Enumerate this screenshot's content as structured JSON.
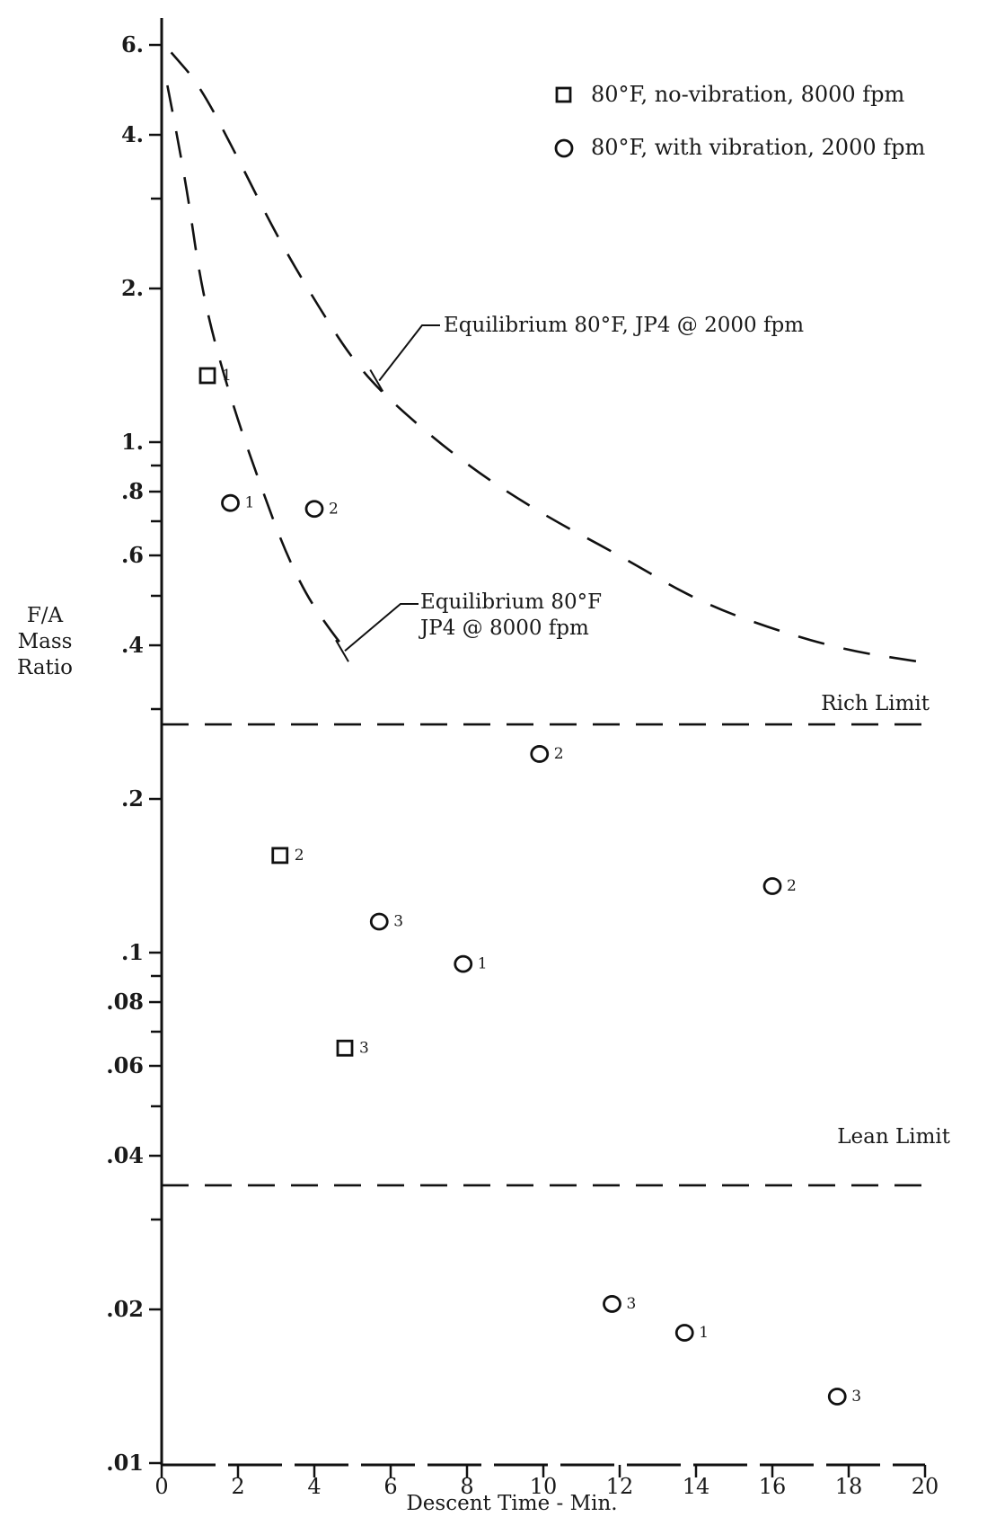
{
  "chart_data": {
    "type": "scatter",
    "scale": {
      "x": "linear",
      "y": "log"
    },
    "xlim": [
      0,
      20
    ],
    "ylim": [
      0.01,
      6.5
    ],
    "grid": false,
    "legend_position": "top-right",
    "xlabel": "Descent Time - Min.",
    "ylabel_lines": [
      "F/A",
      "Mass",
      "Ratio"
    ],
    "x_ticks": [
      {
        "value": 0,
        "label": "0"
      },
      {
        "value": 2,
        "label": "2"
      },
      {
        "value": 4,
        "label": "4"
      },
      {
        "value": 6,
        "label": "6"
      },
      {
        "value": 8,
        "label": "8"
      },
      {
        "value": 10,
        "label": "10"
      },
      {
        "value": 12,
        "label": "12"
      },
      {
        "value": 14,
        "label": "14"
      },
      {
        "value": 16,
        "label": "16"
      },
      {
        "value": 18,
        "label": "18"
      },
      {
        "value": 20,
        "label": "20"
      }
    ],
    "y_ticks_labeled": [
      {
        "value": 6,
        "label": "6."
      },
      {
        "value": 4,
        "label": "4."
      },
      {
        "value": 2,
        "label": "2."
      },
      {
        "value": 1,
        "label": "1."
      },
      {
        "value": 0.8,
        "label": ".8"
      },
      {
        "value": 0.6,
        "label": ".6"
      },
      {
        "value": 0.4,
        "label": ".4"
      },
      {
        "value": 0.2,
        "label": ".2"
      },
      {
        "value": 0.1,
        "label": ".1"
      },
      {
        "value": 0.08,
        "label": ".08"
      },
      {
        "value": 0.06,
        "label": ".06"
      },
      {
        "value": 0.04,
        "label": ".04"
      },
      {
        "value": 0.02,
        "label": ".02"
      },
      {
        "value": 0.01,
        "label": ".01"
      }
    ],
    "y_ticks_minor": [
      3,
      0.9,
      0.7,
      0.5,
      0.3,
      0.09,
      0.07,
      0.05,
      0.03
    ],
    "series": [
      {
        "name": "80°F, no-vibration, 8000 fpm",
        "marker": "square",
        "points": [
          {
            "x": 1.2,
            "y": 1.35,
            "label": "1"
          },
          {
            "x": 3.1,
            "y": 0.155,
            "label": "2"
          },
          {
            "x": 4.8,
            "y": 0.065,
            "label": "3"
          }
        ]
      },
      {
        "name": "80°F, with vibration, 2000 fpm",
        "marker": "circle",
        "points": [
          {
            "x": 1.8,
            "y": 0.76,
            "label": "1"
          },
          {
            "x": 4.0,
            "y": 0.74,
            "label": "2"
          },
          {
            "x": 5.7,
            "y": 0.115,
            "label": "3"
          },
          {
            "x": 7.9,
            "y": 0.095,
            "label": "1"
          },
          {
            "x": 9.9,
            "y": 0.245,
            "label": "2"
          },
          {
            "x": 16.0,
            "y": 0.135,
            "label": "2"
          },
          {
            "x": 11.8,
            "y": 0.0205,
            "label": "3"
          },
          {
            "x": 13.7,
            "y": 0.018,
            "label": "1"
          },
          {
            "x": 17.7,
            "y": 0.0135,
            "label": "3"
          }
        ]
      }
    ],
    "curves": [
      {
        "name": "Equilibrium 80°F, JP4 @ 2000 fpm",
        "style": "dashed",
        "points": [
          [
            0.25,
            5.8
          ],
          [
            1,
            5.0
          ],
          [
            2,
            3.6
          ],
          [
            3,
            2.55
          ],
          [
            4,
            1.9
          ],
          [
            5,
            1.45
          ],
          [
            6,
            1.2
          ],
          [
            8,
            0.9
          ],
          [
            10,
            0.72
          ],
          [
            12,
            0.6
          ],
          [
            14,
            0.49
          ],
          [
            16,
            0.43
          ],
          [
            18,
            0.39
          ],
          [
            20,
            0.37
          ]
        ]
      },
      {
        "name": "Equilibrium 80°F JP4 @ 8000 fpm",
        "style": "dashed",
        "points": [
          [
            0.15,
            5.0
          ],
          [
            0.4,
            4.0
          ],
          [
            0.7,
            3.0
          ],
          [
            1.0,
            2.1
          ],
          [
            1.4,
            1.55
          ],
          [
            2.0,
            1.1
          ],
          [
            2.6,
            0.82
          ],
          [
            3.2,
            0.62
          ],
          [
            3.8,
            0.5
          ],
          [
            4.4,
            0.43
          ],
          [
            4.9,
            0.385
          ]
        ]
      },
      {
        "name": "Rich Limit",
        "style": "dashed",
        "points": [
          [
            0,
            0.28
          ],
          [
            20,
            0.28
          ]
        ]
      },
      {
        "name": "Lean Limit",
        "style": "dashed",
        "points": [
          [
            0,
            0.035
          ],
          [
            20,
            0.035
          ]
        ]
      }
    ],
    "annotations": [
      {
        "text": "Equilibrium 80°F, JP4 @ 2000 fpm",
        "target": [
          5.7,
          1.32
        ]
      },
      {
        "text_lines": [
          "Equilibrium 80°F",
          "JP4 @ 8000 fpm"
        ],
        "target": [
          4.8,
          0.39
        ]
      },
      {
        "text": "Rich Limit"
      },
      {
        "text": "Lean Limit"
      }
    ],
    "legend": [
      {
        "marker": "square",
        "label": "80°F, no-vibration, 8000 fpm"
      },
      {
        "marker": "circle",
        "label": "80°F, with vibration, 2000 fpm"
      }
    ]
  }
}
